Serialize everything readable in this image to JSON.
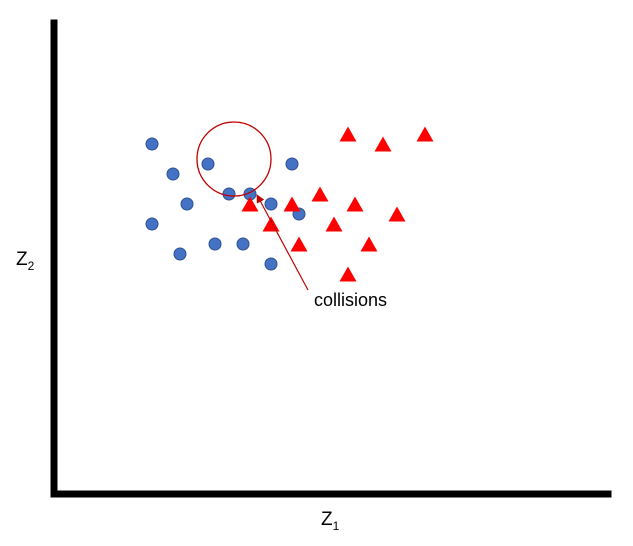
{
  "axes": {
    "x_label": {
      "main": "Z",
      "sub": "1"
    },
    "y_label": {
      "main": "Z",
      "sub": "2"
    }
  },
  "annotation": {
    "text": "collisions"
  },
  "colors": {
    "class_a": "#4472C4",
    "class_a_stroke": "#2F528F",
    "class_b": "#FF0000",
    "highlight": "#C00000",
    "axis": "#000000"
  },
  "chart_data": {
    "type": "scatter",
    "grid": false,
    "legend": "none",
    "series": [
      {
        "marker": "circle",
        "points": [
          [
            14,
            35
          ],
          [
            17,
            32
          ],
          [
            22,
            33
          ],
          [
            19,
            29
          ],
          [
            25,
            30
          ],
          [
            28,
            30
          ],
          [
            14,
            27
          ],
          [
            18,
            24
          ],
          [
            23,
            25
          ],
          [
            27,
            25
          ],
          [
            31,
            29
          ],
          [
            34,
            33
          ],
          [
            35,
            28
          ],
          [
            31,
            23
          ]
        ]
      },
      {
        "marker": "triangle",
        "points": [
          [
            42,
            36
          ],
          [
            47,
            35
          ],
          [
            53,
            36
          ],
          [
            28,
            29
          ],
          [
            31,
            27
          ],
          [
            34,
            29
          ],
          [
            38,
            30
          ],
          [
            43,
            29
          ],
          [
            49,
            28
          ],
          [
            40,
            27
          ],
          [
            45,
            25
          ],
          [
            35,
            25
          ],
          [
            42,
            22
          ]
        ]
      }
    ]
  }
}
